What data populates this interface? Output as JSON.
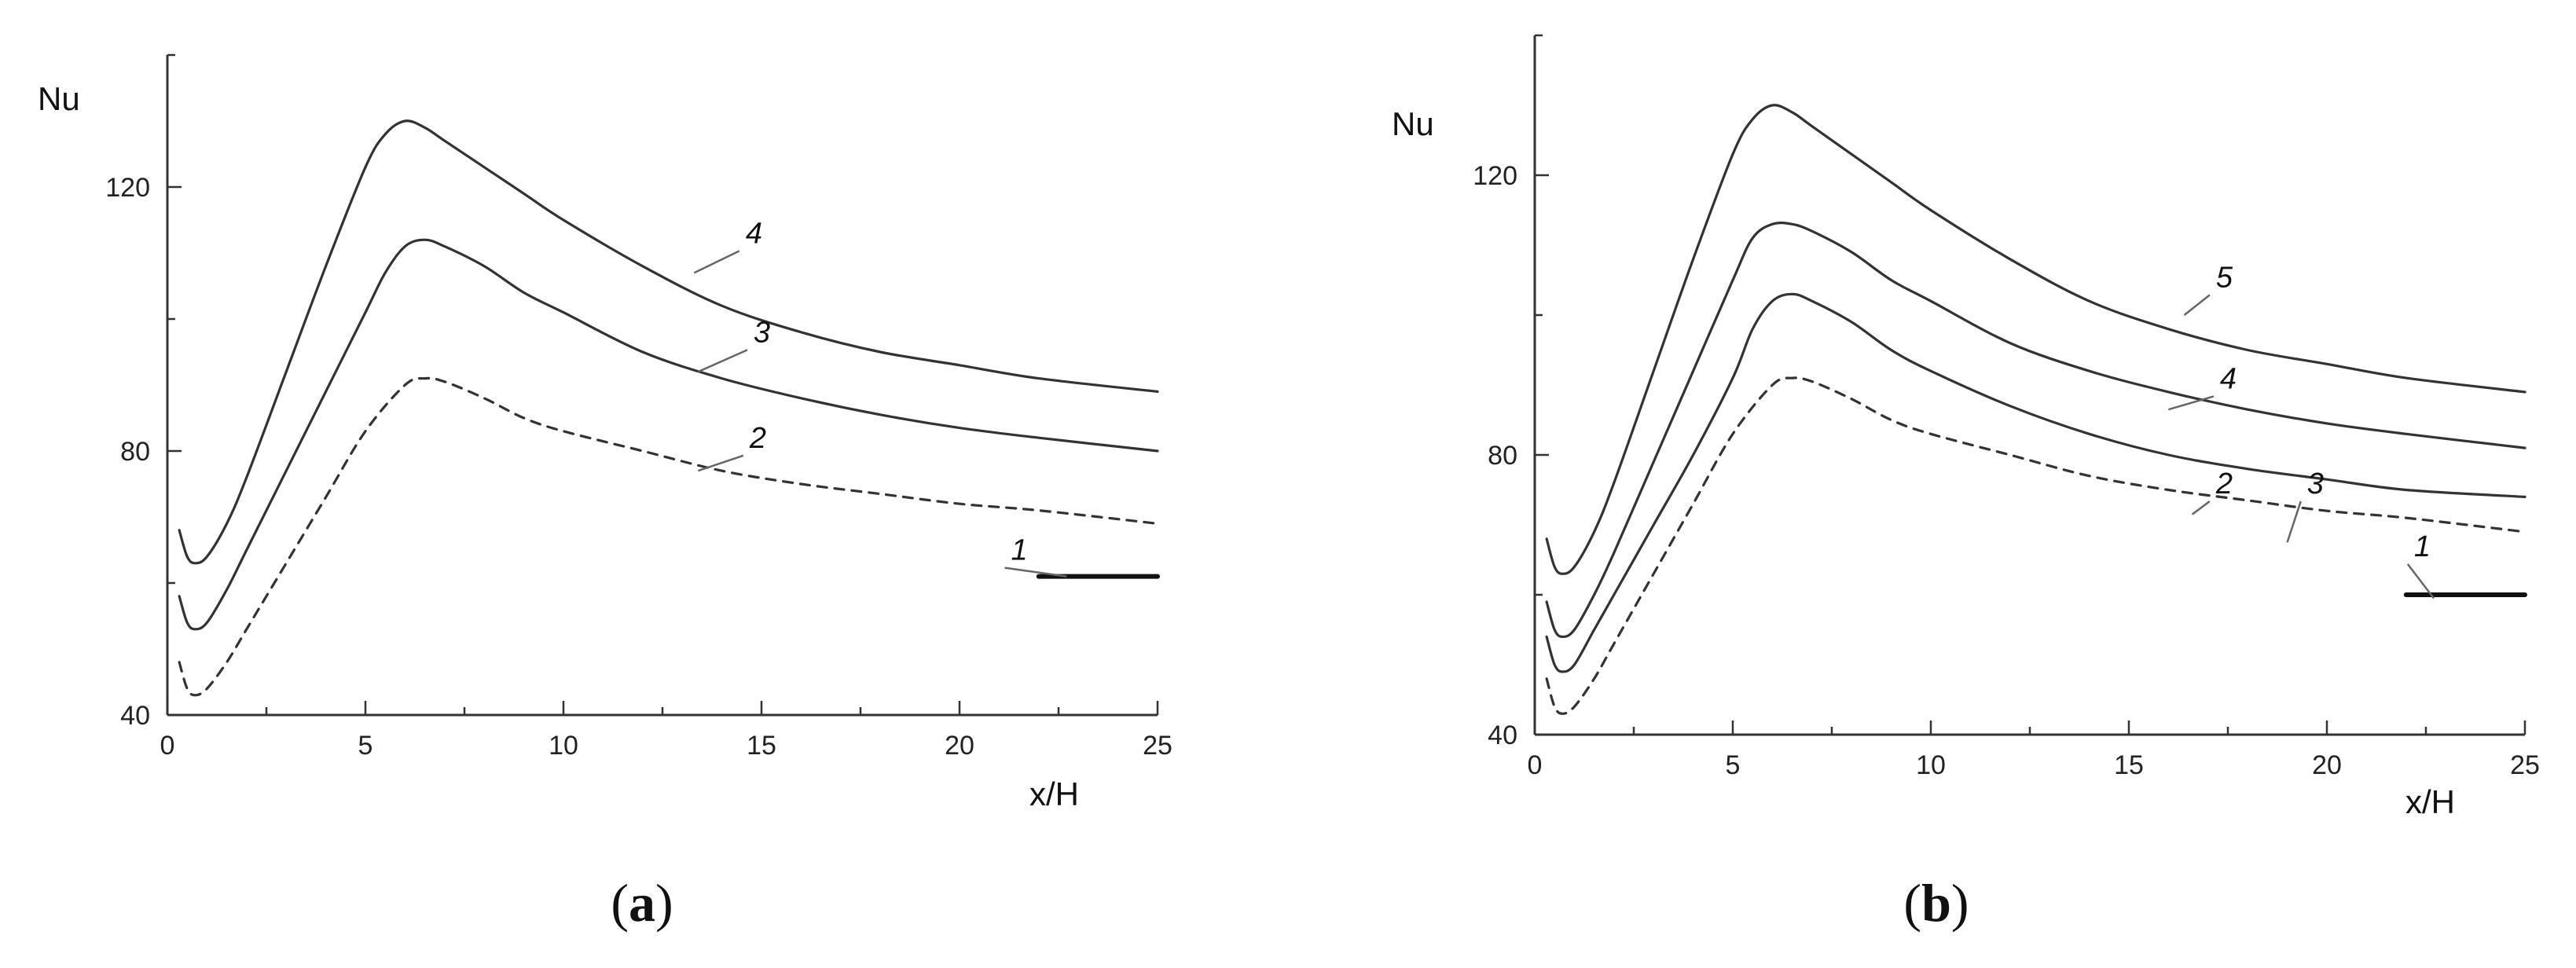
{
  "chart_data": [
    {
      "type": "line",
      "panel_label": "a",
      "xlabel": "x/H",
      "ylabel": "Nu",
      "xlim": [
        0,
        25
      ],
      "ylim": [
        40,
        140
      ],
      "x_ticks": [
        0,
        5,
        10,
        15,
        20,
        25
      ],
      "y_ticks": [
        40,
        80,
        120
      ],
      "grid": false,
      "series": [
        {
          "name": "1",
          "style": "thick",
          "x": [
            22,
            25
          ],
          "y": [
            61,
            61
          ]
        },
        {
          "name": "2",
          "style": "dashed",
          "x": [
            0.3,
            0.5,
            0.7,
            1,
            1.5,
            2,
            3,
            4,
            5,
            6,
            6.5,
            7,
            8,
            9,
            10,
            12,
            14,
            16,
            18,
            20,
            22,
            25
          ],
          "y": [
            48,
            44,
            43,
            44,
            48,
            53,
            63,
            73,
            83,
            90,
            91,
            90.5,
            88,
            85,
            83,
            80,
            77,
            75,
            73.5,
            72,
            71,
            69
          ]
        },
        {
          "name": "3",
          "style": "solid",
          "x": [
            0.3,
            0.5,
            0.7,
            1,
            1.5,
            2,
            3,
            4,
            5,
            5.5,
            6,
            6.5,
            7,
            8,
            9,
            10,
            12,
            14,
            16,
            18,
            20,
            22,
            25
          ],
          "y": [
            58,
            54,
            53,
            54,
            59,
            65,
            77,
            89,
            101,
            107,
            111,
            112,
            111,
            108,
            104,
            101,
            95,
            91,
            88,
            85.5,
            83.5,
            82,
            80
          ]
        },
        {
          "name": "4",
          "style": "solid",
          "x": [
            0.3,
            0.5,
            0.7,
            1,
            1.5,
            2,
            3,
            4,
            5,
            5.5,
            6,
            6.5,
            7,
            8,
            9,
            10,
            12,
            14,
            16,
            18,
            20,
            22,
            25
          ],
          "y": [
            68,
            64,
            63,
            64,
            69,
            76,
            92,
            108,
            123,
            128,
            130,
            129,
            127,
            123,
            119,
            115,
            108,
            102,
            98,
            95,
            93,
            91,
            89
          ]
        }
      ],
      "annotations": [
        {
          "text": "1",
          "x": 21.3,
          "y": 63.5
        },
        {
          "text": "2",
          "x": 14.7,
          "y": 80.5
        },
        {
          "text": "3",
          "x": 14.8,
          "y": 96.5
        },
        {
          "text": "4",
          "x": 14.6,
          "y": 111.5
        }
      ]
    },
    {
      "type": "line",
      "panel_label": "b",
      "xlabel": "x/H",
      "ylabel": "Nu",
      "xlim": [
        0,
        25
      ],
      "ylim": [
        40,
        140
      ],
      "x_ticks": [
        0,
        5,
        10,
        15,
        20,
        25
      ],
      "y_ticks": [
        40,
        80,
        120
      ],
      "grid": false,
      "series": [
        {
          "name": "1",
          "style": "thick",
          "x": [
            22,
            25
          ],
          "y": [
            60,
            60
          ]
        },
        {
          "name": "2",
          "style": "dashed",
          "x": [
            0.3,
            0.5,
            0.7,
            1,
            1.5,
            2,
            3,
            4,
            5,
            6,
            6.5,
            7,
            8,
            9,
            10,
            12,
            14,
            16,
            18,
            20,
            22,
            25
          ],
          "y": [
            48,
            44,
            43,
            44,
            48,
            53,
            63,
            73,
            83,
            90,
            91,
            90.5,
            88,
            85,
            83,
            80,
            77,
            75,
            73.5,
            72,
            71,
            69
          ]
        },
        {
          "name": "3",
          "style": "solid",
          "x": [
            0.3,
            0.5,
            0.7,
            1,
            1.5,
            2,
            3,
            4,
            5,
            5.5,
            6,
            6.5,
            7,
            8,
            9,
            10,
            12,
            14,
            16,
            18,
            20,
            22,
            25
          ],
          "y": [
            54,
            50,
            49,
            50,
            55,
            60,
            70,
            80,
            91,
            98,
            102,
            103,
            102,
            99,
            95,
            92,
            87,
            83,
            80,
            78,
            76.5,
            75,
            74
          ]
        },
        {
          "name": "4",
          "style": "solid",
          "x": [
            0.3,
            0.5,
            0.7,
            1,
            1.5,
            2,
            3,
            4,
            5,
            5.5,
            6,
            6.5,
            7,
            8,
            9,
            10,
            12,
            14,
            16,
            18,
            20,
            22,
            25
          ],
          "y": [
            59,
            55,
            54,
            55,
            60,
            66,
            79,
            92,
            105,
            111,
            113,
            113,
            112,
            109,
            105,
            102,
            96,
            92,
            89,
            86.5,
            84.5,
            83,
            81
          ]
        },
        {
          "name": "5",
          "style": "solid",
          "x": [
            0.3,
            0.5,
            0.7,
            1,
            1.5,
            2,
            3,
            4,
            5,
            5.5,
            6,
            6.5,
            7,
            8,
            9,
            10,
            12,
            14,
            16,
            18,
            20,
            22,
            25
          ],
          "y": [
            68,
            64,
            63,
            64,
            69,
            76,
            92,
            108,
            123,
            128,
            130,
            129,
            127,
            123,
            119,
            115,
            108,
            102,
            98,
            95,
            93,
            91,
            89
          ]
        }
      ],
      "annotations": [
        {
          "text": "1",
          "x": 22.2,
          "y": 65.5
        },
        {
          "text": "2",
          "x": 17.2,
          "y": 74.5
        },
        {
          "text": "3",
          "x": 19.5,
          "y": 74.5
        },
        {
          "text": "4",
          "x": 17.3,
          "y": 89.5
        },
        {
          "text": "5",
          "x": 17.2,
          "y": 104
        }
      ]
    }
  ]
}
